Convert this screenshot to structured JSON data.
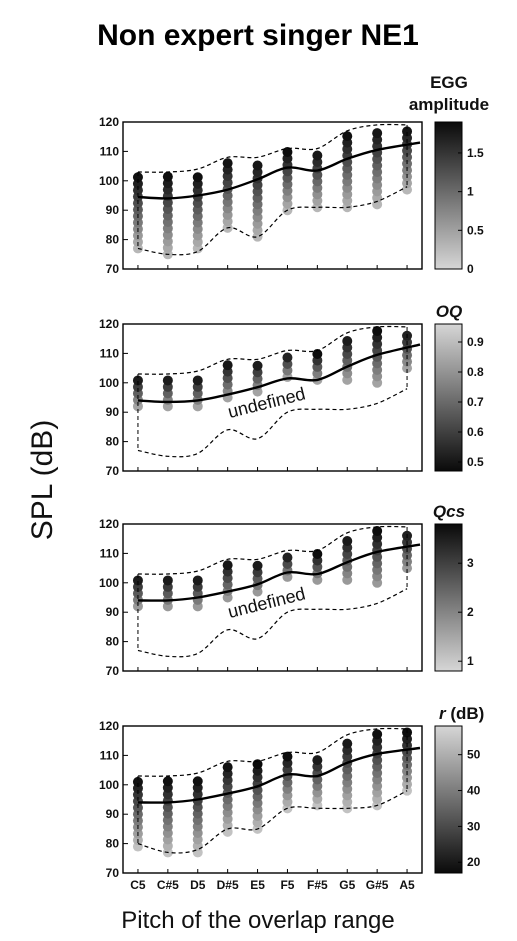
{
  "title": "Non expert singer NE1",
  "ylabel": "SPL (dB)",
  "xlabel": "Pitch of the overlap range",
  "colors": {
    "dark": "#0a0a0a",
    "light": "#d6d6d6",
    "curve": "#000000"
  },
  "chart_data": [
    {
      "type": "scatter",
      "panel": "EGG amplitude",
      "colorbar": {
        "label": "EGG amplitude",
        "italic": false,
        "ticks": [
          0,
          0.5,
          1,
          1.5
        ],
        "range": [
          0,
          1.9
        ],
        "dark_at_high": true
      },
      "categories": [
        "C5",
        "C#5",
        "D5",
        "D#5",
        "E5",
        "F5",
        "F#5",
        "G5",
        "G#5",
        "A5"
      ],
      "ylim": [
        70,
        120
      ],
      "yticks": [
        70,
        80,
        90,
        100,
        110,
        120
      ],
      "columns": [
        {
          "from": 77,
          "to": 102
        },
        {
          "from": 75,
          "to": 102
        },
        {
          "from": 77,
          "to": 102
        },
        {
          "from": 84,
          "to": 107
        },
        {
          "from": 81,
          "to": 107
        },
        {
          "from": 90,
          "to": 110
        },
        {
          "from": 91,
          "to": 110
        },
        {
          "from": 91,
          "to": 116
        },
        {
          "from": 92,
          "to": 118
        },
        {
          "from": 97,
          "to": 118
        }
      ],
      "mean_curve": [
        94.5,
        94,
        95,
        97,
        100.5,
        104.5,
        103.5,
        107.5,
        110.5,
        113
      ],
      "envelope_upper": [
        103,
        103,
        104,
        108,
        108,
        111,
        111,
        117,
        119,
        119
      ],
      "envelope_lower": [
        77,
        75,
        76,
        84,
        81,
        90,
        91,
        91,
        93,
        98
      ],
      "annotation": ""
    },
    {
      "type": "scatter",
      "panel": "OQ",
      "colorbar": {
        "label": "OQ",
        "italic": true,
        "ticks": [
          0.5,
          0.6,
          0.7,
          0.8,
          0.9
        ],
        "range": [
          0.47,
          0.96
        ],
        "dark_at_high": false
      },
      "categories": [
        "C5",
        "C#5",
        "D5",
        "D#5",
        "E5",
        "F5",
        "F#5",
        "G5",
        "G#5",
        "A5"
      ],
      "ylim": [
        70,
        120
      ],
      "yticks": [
        70,
        80,
        90,
        100,
        110,
        120
      ],
      "columns": [
        {
          "from": 92,
          "to": 102
        },
        {
          "from": 92,
          "to": 102
        },
        {
          "from": 92,
          "to": 102
        },
        {
          "from": 95,
          "to": 107
        },
        {
          "from": 97,
          "to": 107
        },
        {
          "from": 102,
          "to": 110
        },
        {
          "from": 101,
          "to": 110
        },
        {
          "from": 101,
          "to": 116
        },
        {
          "from": 100,
          "to": 118
        },
        {
          "from": 105,
          "to": 118
        }
      ],
      "mean_curve": [
        94,
        93.5,
        94,
        96,
        98.5,
        101.5,
        101,
        105.5,
        109.5,
        113
      ],
      "envelope_upper": [
        103,
        103,
        104,
        108,
        108,
        111,
        111,
        117,
        119,
        119
      ],
      "envelope_lower": [
        77,
        75,
        76,
        84,
        81,
        90,
        91,
        91,
        93,
        98
      ],
      "annotation": "undefined"
    },
    {
      "type": "scatter",
      "panel": "Qcs",
      "colorbar": {
        "label": "Qcs",
        "italic": true,
        "ticks": [
          1,
          2,
          3
        ],
        "range": [
          0.8,
          3.8
        ],
        "dark_at_high": true
      },
      "categories": [
        "C5",
        "C#5",
        "D5",
        "D#5",
        "E5",
        "F5",
        "F#5",
        "G5",
        "G#5",
        "A5"
      ],
      "ylim": [
        70,
        120
      ],
      "yticks": [
        70,
        80,
        90,
        100,
        110,
        120
      ],
      "columns": [
        {
          "from": 92,
          "to": 102
        },
        {
          "from": 92,
          "to": 102
        },
        {
          "from": 92,
          "to": 102
        },
        {
          "from": 95,
          "to": 107
        },
        {
          "from": 97,
          "to": 107
        },
        {
          "from": 102,
          "to": 110
        },
        {
          "from": 101,
          "to": 110
        },
        {
          "from": 101,
          "to": 116
        },
        {
          "from": 100,
          "to": 118
        },
        {
          "from": 105,
          "to": 118
        }
      ],
      "mean_curve": [
        94,
        94,
        95,
        97,
        99.5,
        103.5,
        103,
        107,
        110.5,
        113
      ],
      "envelope_upper": [
        103,
        103,
        104,
        108,
        108,
        111,
        111,
        117,
        119,
        119
      ],
      "envelope_lower": [
        77,
        75,
        76,
        84,
        81,
        90,
        91,
        91,
        93,
        98
      ],
      "annotation": "undefined"
    },
    {
      "type": "scatter",
      "panel": "r (dB)",
      "colorbar": {
        "label": "r",
        "label_suffix": " (dB)",
        "italic": true,
        "ticks": [
          20,
          30,
          40,
          50
        ],
        "range": [
          17,
          58
        ],
        "dark_at_high": false
      },
      "categories": [
        "C5",
        "C#5",
        "D5",
        "D#5",
        "E5",
        "F5",
        "F#5",
        "G5",
        "G#5",
        "A5"
      ],
      "ylim": [
        70,
        120
      ],
      "yticks": [
        70,
        80,
        90,
        100,
        110,
        120
      ],
      "columns": [
        {
          "from": 79,
          "to": 102
        },
        {
          "from": 77,
          "to": 102
        },
        {
          "from": 77,
          "to": 102
        },
        {
          "from": 84,
          "to": 107
        },
        {
          "from": 85,
          "to": 107
        },
        {
          "from": 92,
          "to": 110
        },
        {
          "from": 93,
          "to": 110
        },
        {
          "from": 92,
          "to": 116
        },
        {
          "from": 93,
          "to": 118
        },
        {
          "from": 98,
          "to": 118
        }
      ],
      "mean_curve": [
        94,
        94,
        95,
        97,
        99.5,
        103.5,
        103,
        107.5,
        110.5,
        112.5
      ],
      "envelope_upper": [
        103,
        103,
        104,
        108,
        108,
        111,
        111,
        117,
        119,
        119
      ],
      "envelope_lower": [
        80,
        77,
        78,
        85,
        85,
        92,
        92,
        92,
        93,
        98
      ],
      "annotation": ""
    }
  ]
}
